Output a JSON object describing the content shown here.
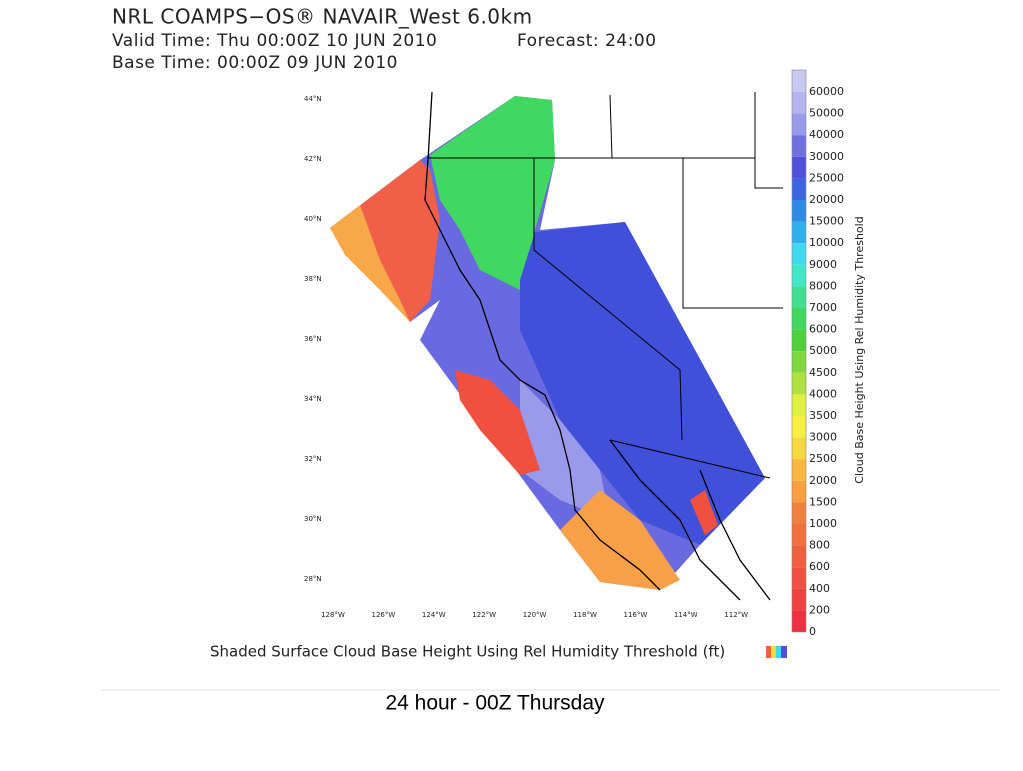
{
  "header": {
    "title": "NRL COAMPS−OS® NAVAIR_West 6.0km",
    "valid_time": "Valid Time: Thu 00:00Z 10 JUN 2010",
    "forecast": "Forecast: 24:00",
    "base_time": "Base Time: 00:00Z 09 JUN 2010"
  },
  "map": {
    "latitude_labels": [
      "44°N",
      "42°N",
      "40°N",
      "38°N",
      "36°N",
      "34°N",
      "32°N",
      "30°N",
      "28°N"
    ],
    "longitude_labels": [
      "128°W",
      "126°W",
      "124°W",
      "122°W",
      "120°W",
      "118°W",
      "116°W",
      "114°W",
      "112°W"
    ]
  },
  "colorbar": {
    "title": "Cloud Base Height Using Rel Humidity Threshold",
    "labels": [
      60000,
      50000,
      40000,
      30000,
      25000,
      20000,
      15000,
      10000,
      9000,
      8000,
      7000,
      6000,
      5000,
      4500,
      4000,
      3500,
      3000,
      2500,
      2000,
      1500,
      1000,
      800,
      600,
      400,
      200,
      0
    ],
    "colors": [
      "#c8c8f0",
      "#b4b4ee",
      "#9a9aea",
      "#7070e0",
      "#5050d8",
      "#3c64e0",
      "#2f8ae6",
      "#30b0ea",
      "#40d8ee",
      "#40e8c8",
      "#40e090",
      "#40d860",
      "#50d040",
      "#80d840",
      "#b0e040",
      "#e0f040",
      "#f8f040",
      "#f8d840",
      "#f8b840",
      "#f8a040",
      "#f08040",
      "#f07040",
      "#f06040",
      "#f05040",
      "#f04040",
      "#f03040"
    ]
  },
  "footer": {
    "map_caption": "Shaded Surface Cloud Base Height Using Rel Humidity Threshold (ft)",
    "slide_caption": "24 hour - 00Z Thursday"
  }
}
